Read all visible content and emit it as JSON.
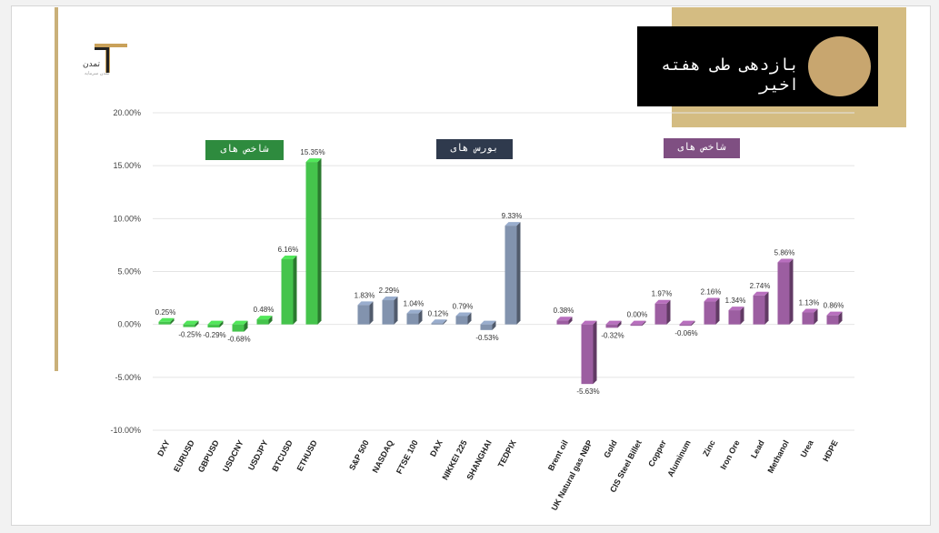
{
  "title": "بازدهی طی هفته اخیر",
  "logo": {
    "name": "تمدن",
    "sub": "تمدن سرمایه"
  },
  "group_labels": [
    {
      "text": "شاخص های",
      "color": "#2e8b3e"
    },
    {
      "text": "بورس های",
      "color": "#2f3a4d"
    },
    {
      "text": "شاخص های",
      "color": "#7f4f82"
    }
  ],
  "chart_data": {
    "type": "bar",
    "ylim": [
      -10,
      20
    ],
    "yticks": [
      "-10.00%",
      "-5.00%",
      "0.00%",
      "5.00%",
      "10.00%",
      "15.00%",
      "20.00%"
    ],
    "tick_values": [
      -10,
      -5,
      0,
      5,
      10,
      15,
      20
    ],
    "grid": true,
    "colors": {
      "green": "#45c44c",
      "slate": "#8293ae",
      "purple": "#9c5ea1"
    },
    "groups": [
      {
        "color_key": "green",
        "categories": [
          "DXY",
          "EURUSD",
          "GBPUSD",
          "USDCNY",
          "USDJPY",
          "BTCUSD",
          "ETHUSD"
        ],
        "values": [
          0.25,
          -0.25,
          -0.29,
          -0.68,
          0.48,
          6.16,
          15.35
        ],
        "labels": [
          "0.25%",
          "-0.25%",
          "-0.29%",
          "-0.68%",
          "0.48%",
          "6.16%",
          "15.35%"
        ]
      },
      {
        "color_key": "slate",
        "categories": [
          "S&P 500",
          "NASDAQ",
          "FTSE 100",
          "DAX",
          "NIKKEI 225",
          "SHANGHAI",
          "TEDPIX"
        ],
        "values": [
          1.83,
          2.29,
          1.04,
          0.12,
          0.79,
          -0.53,
          9.33
        ],
        "labels": [
          "1.83%",
          "2.29%",
          "1.04%",
          "0.12%",
          "0.79%",
          "-0.53%",
          "9.33%"
        ]
      },
      {
        "color_key": "purple",
        "categories": [
          "Brent oil",
          "UK Natural gas NBP",
          "Gold",
          "CIS Steel Billet",
          "Copper",
          "Aluminum",
          "Zinc",
          "Iron Ore",
          "Lead",
          "Methanol",
          "Urea",
          "HDPE"
        ],
        "values": [
          0.38,
          -5.63,
          -0.32,
          0.0,
          1.97,
          -0.06,
          2.16,
          1.34,
          2.74,
          5.86,
          1.13,
          0.86
        ],
        "labels": [
          "0.38%",
          "-5.63%",
          "-0.32%",
          "0.00%",
          "1.97%",
          "-0.06%",
          "2.16%",
          "1.34%",
          "2.74%",
          "5.86%",
          "1.13%",
          "0.86%"
        ]
      }
    ]
  }
}
